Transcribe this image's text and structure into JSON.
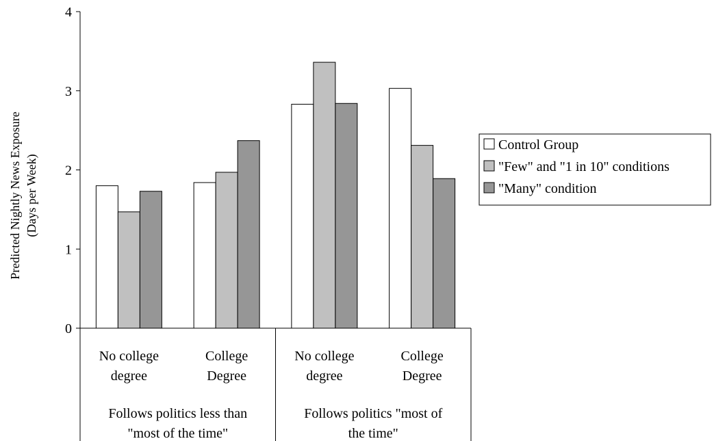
{
  "chart_data": {
    "type": "bar",
    "title": "",
    "ylabel_line1": "Predicted Nightly News Exposure",
    "ylabel_line2": "(Days per Week)",
    "ylim": [
      0,
      4
    ],
    "yticks": [
      0,
      1,
      2,
      3,
      4
    ],
    "grid": false,
    "legend_position": "right",
    "categories": [
      {
        "line1": "No college",
        "line2": "degree"
      },
      {
        "line1": "College",
        "line2": "Degree"
      },
      {
        "line1": "No college",
        "line2": "degree"
      },
      {
        "line1": "College",
        "line2": "Degree"
      }
    ],
    "groups": [
      {
        "line1": "Follows politics less than",
        "line2": "\"most of the time\""
      },
      {
        "line1": "Follows politics \"most of",
        "line2": "the time\""
      }
    ],
    "series": [
      {
        "name": "Control Group",
        "color": "#ffffff",
        "values": [
          1.8,
          1.84,
          2.83,
          3.03
        ]
      },
      {
        "name": "\"Few\" and \"1 in 10\" conditions",
        "color": "#c0c0c0",
        "values": [
          1.47,
          1.97,
          3.36,
          2.31
        ]
      },
      {
        "name": "\"Many\" condition",
        "color": "#969696",
        "values": [
          1.73,
          2.37,
          2.84,
          1.89
        ]
      }
    ]
  }
}
